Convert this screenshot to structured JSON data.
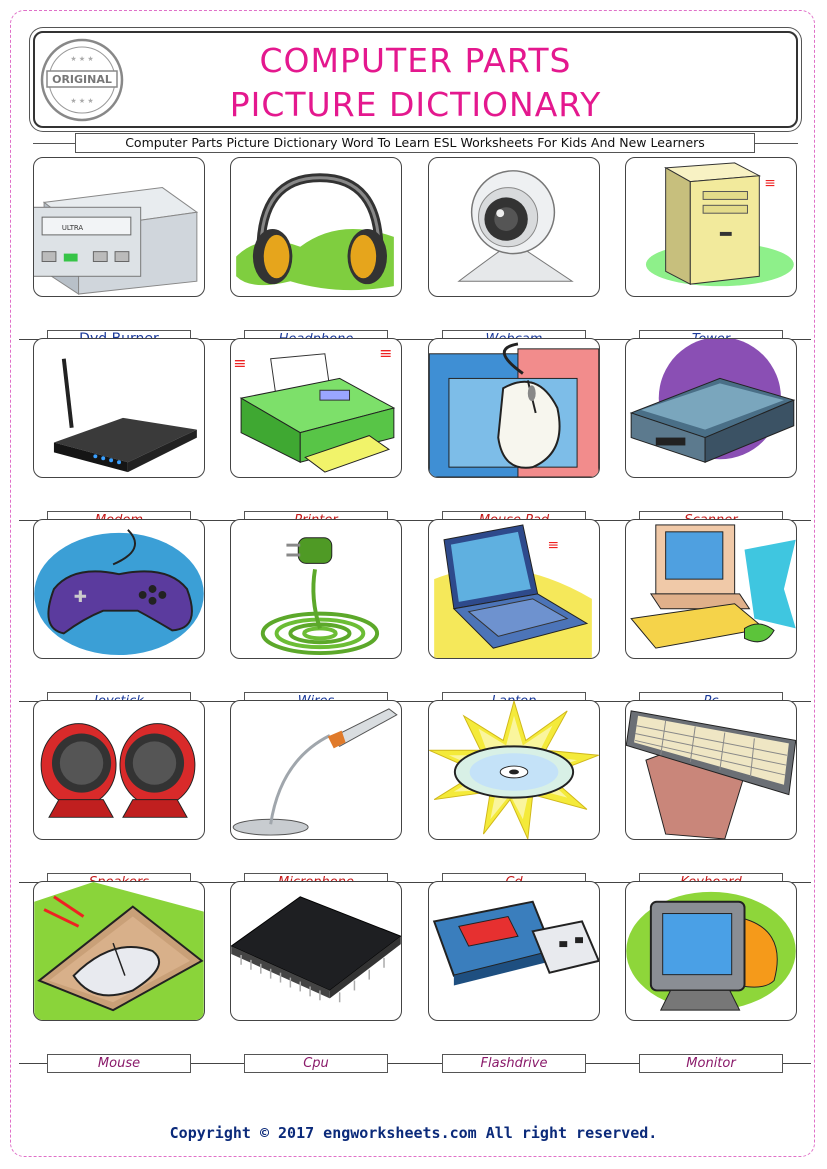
{
  "title": {
    "line1": "COMPUTER PARTS",
    "line2": "PICTURE DICTIONARY"
  },
  "stamp": {
    "text": "ORIGINAL"
  },
  "subtitle": "Computer Parts Picture Dictionary Word To Learn ESL Worksheets For Kids And New Learners",
  "items": [
    {
      "label": "Dvd Burner",
      "icon": "dvd-burner-icon"
    },
    {
      "label": "Headphone",
      "icon": "headphone-icon"
    },
    {
      "label": "Webcam",
      "icon": "webcam-icon"
    },
    {
      "label": "Tower",
      "icon": "tower-icon"
    },
    {
      "label": "Modem",
      "icon": "modem-icon"
    },
    {
      "label": "Printer",
      "icon": "printer-icon"
    },
    {
      "label": "Mouse Pad",
      "icon": "mouse-pad-icon"
    },
    {
      "label": "Scanner",
      "icon": "scanner-icon"
    },
    {
      "label": "Joystick",
      "icon": "joystick-icon"
    },
    {
      "label": "Wires",
      "icon": "wires-icon"
    },
    {
      "label": "Laptop",
      "icon": "laptop-icon"
    },
    {
      "label": "Pc",
      "icon": "pc-icon"
    },
    {
      "label": "Speakers",
      "icon": "speakers-icon"
    },
    {
      "label": "Microphone",
      "icon": "microphone-icon"
    },
    {
      "label": "Cd",
      "icon": "cd-icon"
    },
    {
      "label": "Keyboard",
      "icon": "keyboard-icon"
    },
    {
      "label": "Mouse",
      "icon": "mouse-icon"
    },
    {
      "label": "Cpu",
      "icon": "cpu-icon"
    },
    {
      "label": "Flashdrive",
      "icon": "flashdrive-icon"
    },
    {
      "label": "Monitor",
      "icon": "monitor-icon"
    }
  ],
  "footer": "Copyright © 2017 engworksheets.com All right reserved.",
  "colors": {
    "title": "#e4188e",
    "border": "#e070c8",
    "footer": "#0b2a7a"
  }
}
